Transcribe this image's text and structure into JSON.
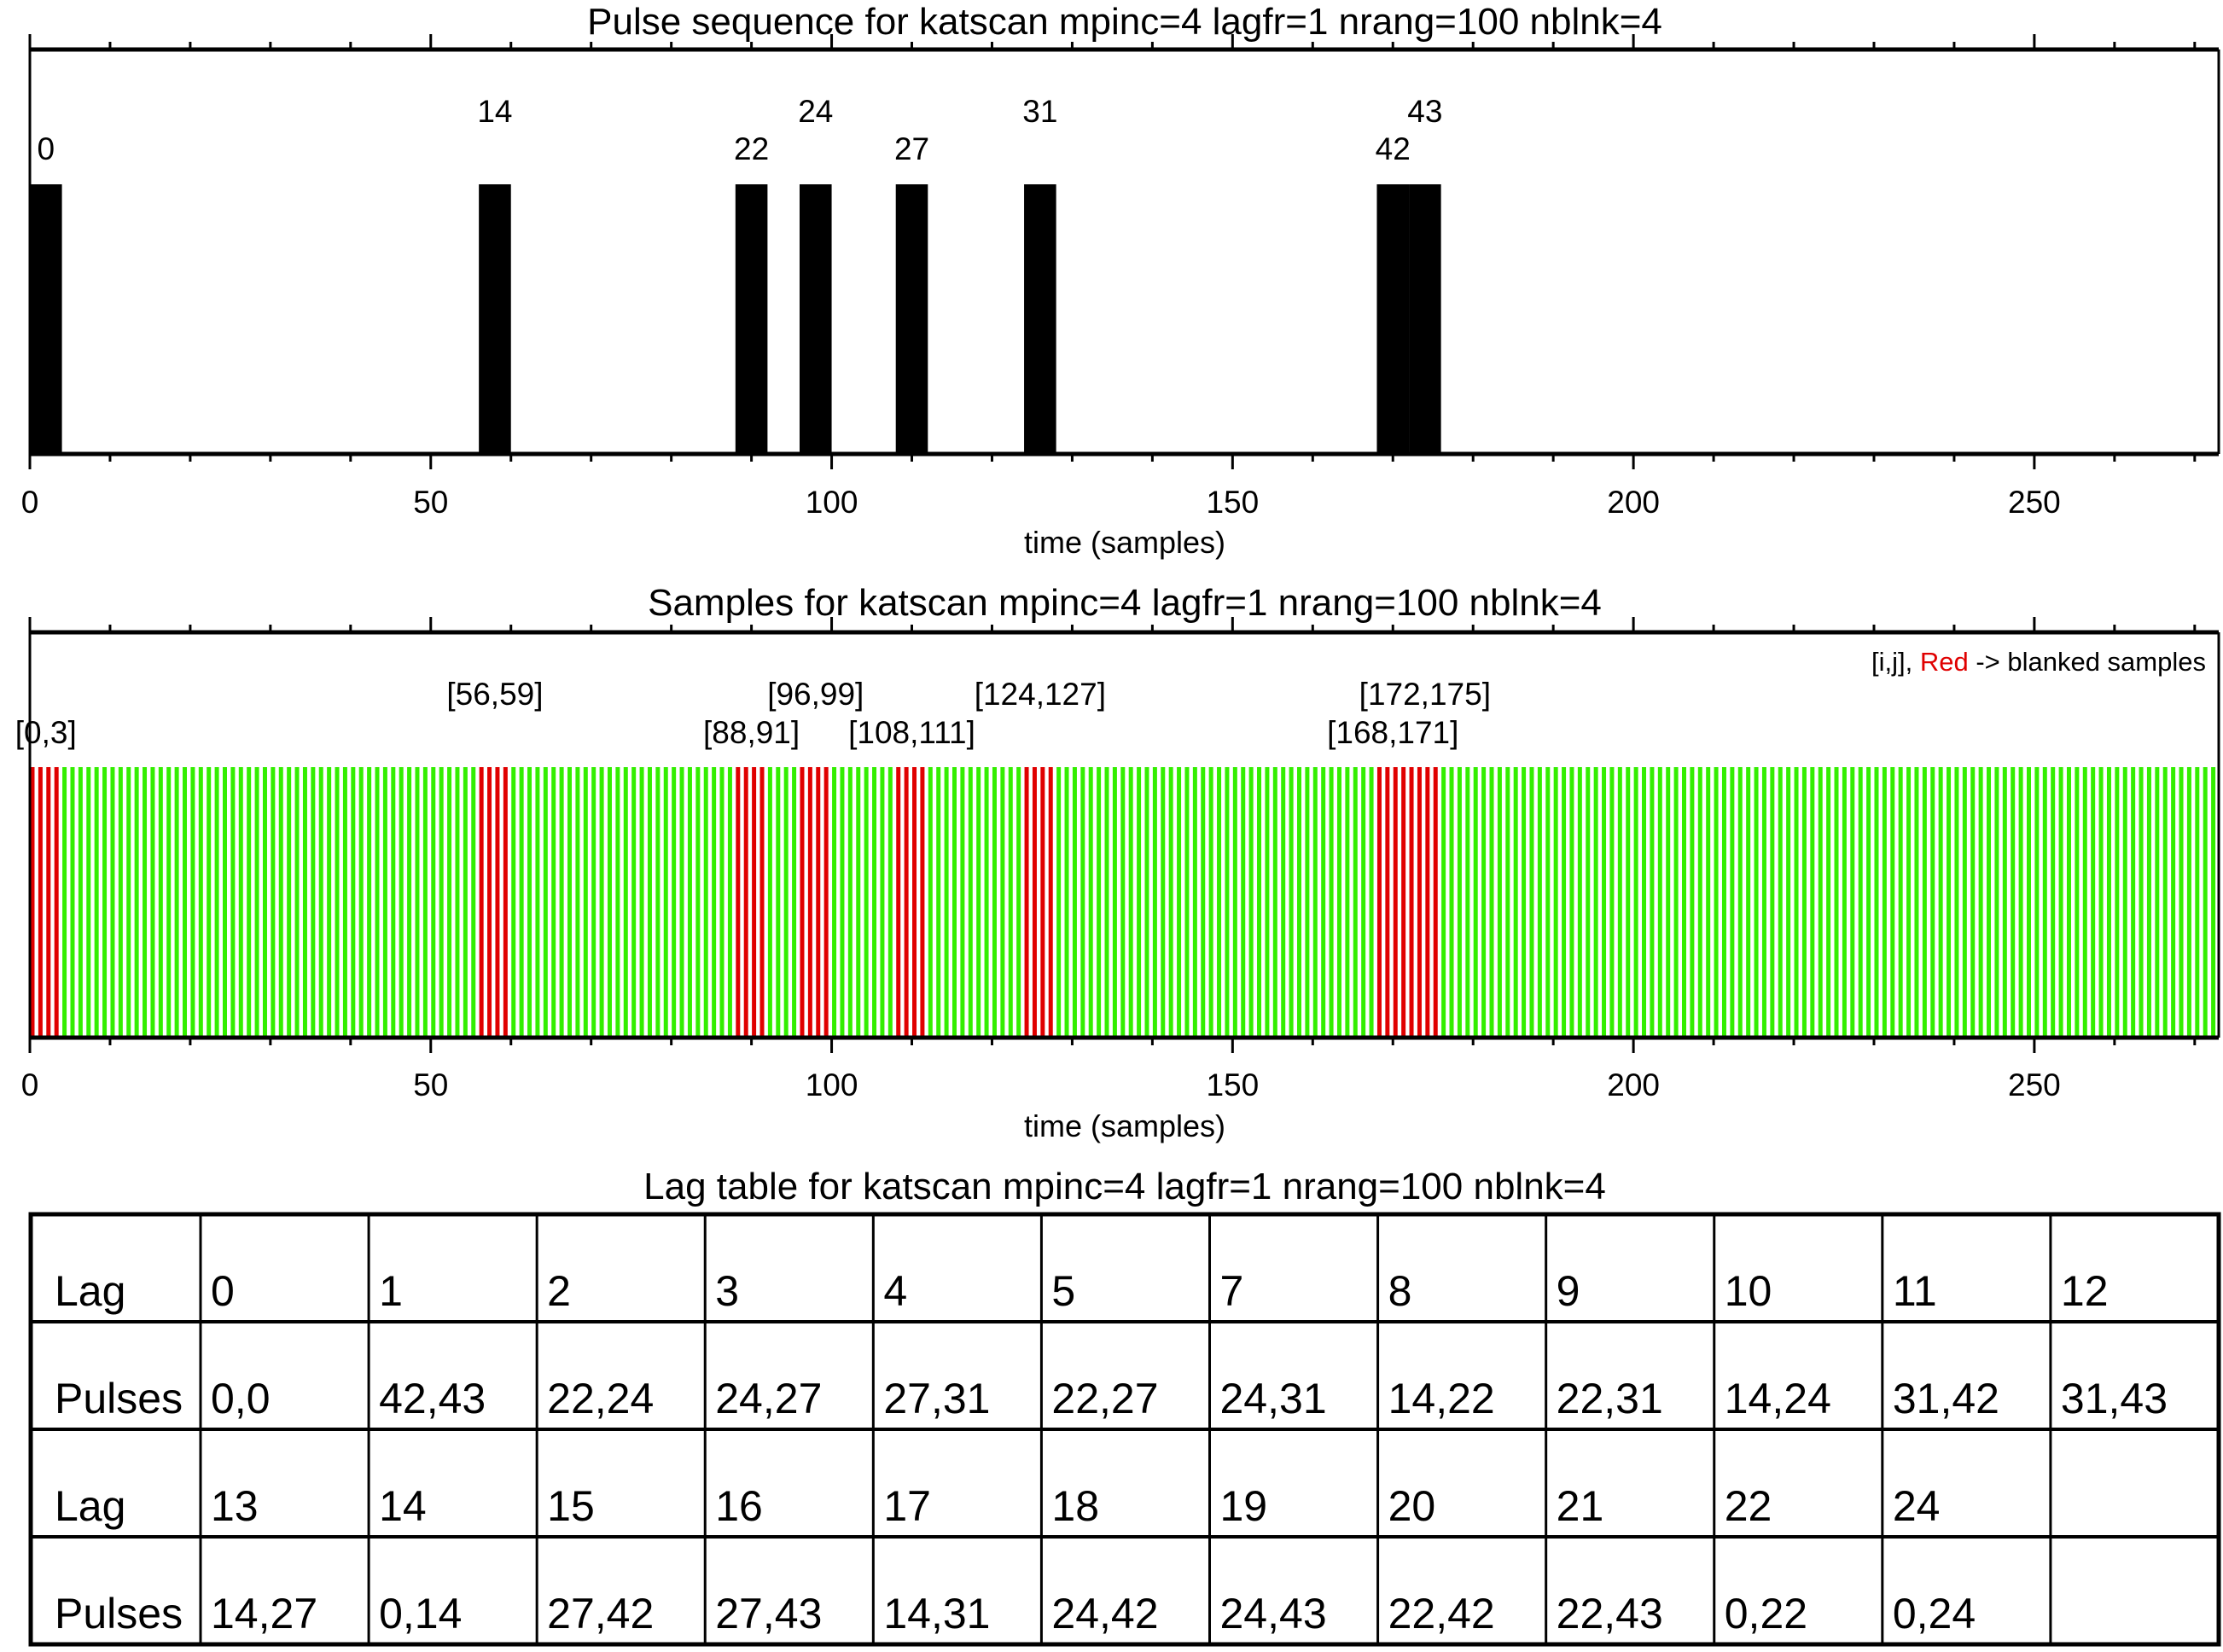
{
  "chart_data": [
    {
      "type": "bar",
      "title": "Pulse sequence for katscan mpinc=4 lagfr=1 nrang=100 nblnk=4",
      "xlabel": "time (samples)",
      "ylabel": "",
      "xlim": [
        0,
        273
      ],
      "xticks": [
        "0",
        "50",
        "100",
        "150",
        "200",
        "250"
      ],
      "pulse_width_samples": 4,
      "pulses": [
        {
          "index": "0",
          "start": 0,
          "row": "lower"
        },
        {
          "index": "14",
          "start": 56,
          "row": "upper"
        },
        {
          "index": "22",
          "start": 88,
          "row": "lower"
        },
        {
          "index": "24",
          "start": 96,
          "row": "upper"
        },
        {
          "index": "27",
          "start": 108,
          "row": "lower"
        },
        {
          "index": "31",
          "start": 124,
          "row": "upper"
        },
        {
          "index": "42",
          "start": 168,
          "row": "lower"
        },
        {
          "index": "43",
          "start": 172,
          "row": "upper"
        }
      ],
      "bar_color": "#000000"
    },
    {
      "type": "bar",
      "title": "Samples for katscan mpinc=4 lagfr=1 nrang=100 nblnk=4",
      "xlabel": "time (samples)",
      "xlim": [
        0,
        273
      ],
      "xticks": [
        "0",
        "50",
        "100",
        "150",
        "200",
        "250"
      ],
      "n_samples": 273,
      "blanked_ranges": [
        {
          "label": "[0,3]",
          "start": 0,
          "end": 3,
          "row": "lower"
        },
        {
          "label": "[56,59]",
          "start": 56,
          "end": 59,
          "row": "upper"
        },
        {
          "label": "[88,91]",
          "start": 88,
          "end": 91,
          "row": "lower"
        },
        {
          "label": "[96,99]",
          "start": 96,
          "end": 99,
          "row": "upper"
        },
        {
          "label": "[108,111]",
          "start": 108,
          "end": 111,
          "row": "lower"
        },
        {
          "label": "[124,127]",
          "start": 124,
          "end": 127,
          "row": "upper"
        },
        {
          "label": "[168,171]",
          "start": 168,
          "end": 171,
          "row": "lower"
        },
        {
          "label": "[172,175]",
          "start": 172,
          "end": 175,
          "row": "upper"
        }
      ],
      "legend": {
        "prefix": "[i,j],",
        "red_word": "Red",
        "suffix": "-> blanked samples",
        "placement": "top-right"
      },
      "colors": {
        "sample": "#33ee00",
        "blanked": "#e00000"
      }
    },
    {
      "type": "table",
      "title": "Lag table for katscan mpinc=4 lagfr=1 nrang=100 nblnk=4",
      "rows": [
        [
          "Lag",
          "0",
          "1",
          "2",
          "3",
          "4",
          "5",
          "7",
          "8",
          "9",
          "10",
          "11",
          "12"
        ],
        [
          "Pulses",
          "0,0",
          "42,43",
          "22,24",
          "24,27",
          "27,31",
          "22,27",
          "24,31",
          "14,22",
          "22,31",
          "14,24",
          "31,42",
          "31,43"
        ],
        [
          "Lag",
          "13",
          "14",
          "15",
          "16",
          "17",
          "18",
          "19",
          "20",
          "21",
          "22",
          "24",
          ""
        ],
        [
          "Pulses",
          "14,27",
          "0,14",
          "27,42",
          "27,43",
          "14,31",
          "24,42",
          "24,43",
          "22,42",
          "22,43",
          "0,22",
          "0,24",
          ""
        ]
      ]
    }
  ]
}
